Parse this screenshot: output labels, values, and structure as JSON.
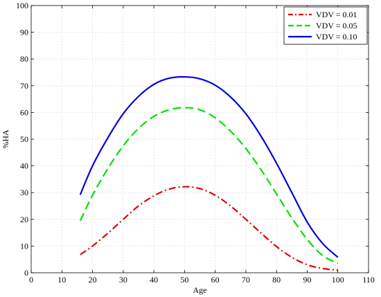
{
  "chart_data": {
    "type": "line",
    "xlabel": "Age",
    "ylabel": "%HA",
    "xlim": [
      0,
      110
    ],
    "ylim": [
      0,
      100
    ],
    "xticks": [
      "0",
      "10",
      "20",
      "30",
      "40",
      "50",
      "60",
      "70",
      "80",
      "90",
      "100",
      "110"
    ],
    "yticks": [
      "0",
      "10",
      "20",
      "30",
      "40",
      "50",
      "60",
      "70",
      "80",
      "90",
      "100"
    ],
    "grid": true,
    "legend_position": "top-right",
    "x": [
      16,
      20,
      25,
      30,
      35,
      40,
      45,
      50,
      55,
      60,
      65,
      70,
      75,
      80,
      85,
      90,
      95,
      100
    ],
    "series": [
      {
        "name": "VDV = 0.01",
        "color": "#e00000",
        "dash": "dash-dot",
        "values": [
          6.8,
          10.0,
          14.8,
          20.0,
          25.0,
          28.8,
          31.3,
          32.2,
          31.5,
          29.0,
          25.0,
          20.0,
          14.8,
          9.8,
          5.8,
          3.0,
          1.6,
          1.0
        ]
      },
      {
        "name": "VDV = 0.05",
        "color": "#00e000",
        "dash": "dashed",
        "values": [
          19.5,
          29.0,
          39.0,
          47.5,
          54.0,
          58.5,
          61.0,
          61.8,
          61.0,
          58.0,
          53.0,
          46.5,
          38.5,
          29.5,
          20.5,
          12.5,
          6.5,
          3.5
        ]
      },
      {
        "name": "VDV = 0.10",
        "color": "#0000e0",
        "dash": "solid",
        "values": [
          29.2,
          40.0,
          50.5,
          59.5,
          66.0,
          70.5,
          72.8,
          73.3,
          72.6,
          70.2,
          65.8,
          59.5,
          51.0,
          41.0,
          30.0,
          19.0,
          11.0,
          5.8
        ]
      }
    ]
  }
}
